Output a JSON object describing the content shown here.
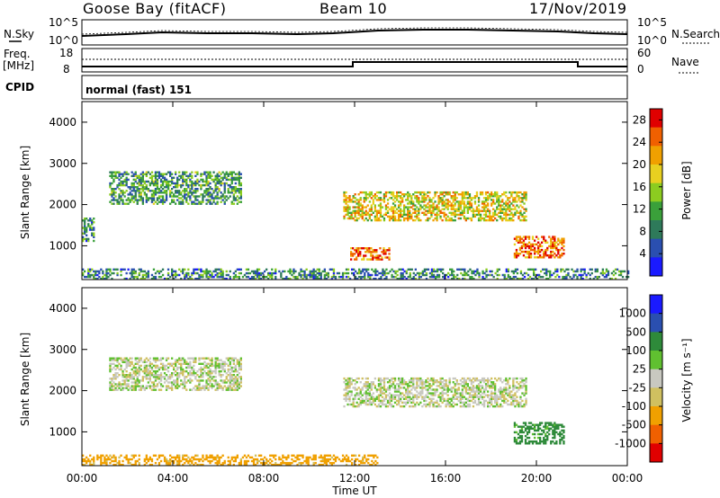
{
  "header": {
    "station": "Goose Bay (fitACF)",
    "beam": "Beam 10",
    "date": "17/Nov/2019"
  },
  "noise_panel": {
    "left_label": "N.Sky",
    "right_label": "N.Search",
    "left_ticks": [
      "10^5",
      "10^0"
    ],
    "right_ticks": [
      "10^5",
      "10^0"
    ]
  },
  "freq_panel": {
    "left_label_top": "Freq.",
    "left_label_unit": "[MHz]",
    "right_label": "Nave",
    "left_ticks": [
      "18",
      "8"
    ],
    "right_ticks": [
      "60",
      "0"
    ]
  },
  "cpid": {
    "label": "CPID",
    "value": "normal (fast) 151"
  },
  "colors": {
    "power": [
      "#1a1aff",
      "#2a4fb0",
      "#2e7a5a",
      "#3aa03a",
      "#8ccc20",
      "#e8d020",
      "#f0a000",
      "#f06000",
      "#e00000"
    ],
    "velocity": [
      "#e00000",
      "#f06000",
      "#f0a000",
      "#d0c060",
      "#c8c8c0",
      "#60c030",
      "#2e8a3a",
      "#2a4fb0",
      "#1a1aff"
    ]
  },
  "chart_data": [
    {
      "type": "heatmap",
      "title": "",
      "ylabel": "Slant Range [km]",
      "xlabel": "",
      "ylim": [
        180,
        4500
      ],
      "xlim": [
        0,
        24
      ],
      "y_ticks": [
        1000,
        2000,
        3000,
        4000
      ],
      "colorbar": {
        "label": "Power [dB]",
        "ticks": [
          4,
          8,
          12,
          16,
          20,
          24,
          28
        ],
        "range": [
          0,
          30
        ]
      },
      "regions": [
        {
          "t0": 1.2,
          "t1": 7.0,
          "r0": 2000,
          "r1": 2800,
          "level": 0.35
        },
        {
          "t0": 0.0,
          "t1": 0.5,
          "r0": 1100,
          "r1": 1650,
          "level": 0.3
        },
        {
          "t0": 11.5,
          "t1": 19.5,
          "r0": 1600,
          "r1": 2300,
          "level": 0.6
        },
        {
          "t0": 11.8,
          "t1": 13.5,
          "r0": 650,
          "r1": 950,
          "level": 0.8
        },
        {
          "t0": 19.0,
          "t1": 21.2,
          "r0": 700,
          "r1": 1200,
          "level": 0.8
        },
        {
          "t0": 0.0,
          "t1": 24.0,
          "r0": 180,
          "r1": 450,
          "level": 0.3
        }
      ]
    },
    {
      "type": "heatmap",
      "title": "",
      "xlabel": "Time UT",
      "ylabel": "Slant Range [km]",
      "ylim": [
        180,
        4500
      ],
      "xlim": [
        0,
        24
      ],
      "x_ticks": [
        "00:00",
        "04:00",
        "08:00",
        "12:00",
        "16:00",
        "20:00",
        "00:00"
      ],
      "y_ticks": [
        1000,
        2000,
        3000,
        4000
      ],
      "colorbar": {
        "label": "Velocity [m s⁻¹]",
        "ticks": [
          1000,
          500,
          100,
          25,
          -25,
          -100,
          -500,
          -1000
        ]
      },
      "regions": [
        {
          "t0": 1.2,
          "t1": 7.0,
          "r0": 2000,
          "r1": 2800,
          "vel": 0
        },
        {
          "t0": 11.5,
          "t1": 19.5,
          "r0": 1600,
          "r1": 2300,
          "vel": 0
        },
        {
          "t0": 19.0,
          "t1": 21.2,
          "r0": 700,
          "r1": 1200,
          "vel": 150
        },
        {
          "t0": 0.0,
          "t1": 13.0,
          "r0": 180,
          "r1": 450,
          "vel": -150
        }
      ]
    }
  ]
}
